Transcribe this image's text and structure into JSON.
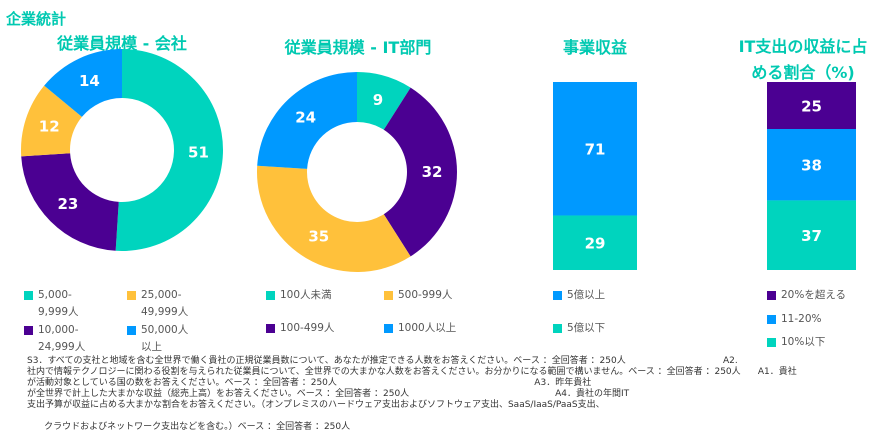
{
  "page_title": "企業統計",
  "colors": {
    "teal": "#00d4be",
    "yellow": "#ffc13b",
    "purple": "#4b0092",
    "blue": "#0099ff"
  },
  "chart_data": [
    {
      "type": "pie",
      "title": "従業員規模 - 会社",
      "categories": [
        "5,000-9,999人",
        "10,000-24,999人",
        "25,000-49,999人",
        "50,000人以上"
      ],
      "values": [
        51,
        23,
        12,
        14
      ],
      "colors": [
        "#00d4be",
        "#4b0092",
        "#ffc13b",
        "#0099ff"
      ]
    },
    {
      "type": "pie",
      "title": "従業員規模 - IT部門",
      "categories": [
        "100人未満",
        "100-499人",
        "500-999人",
        "1000人以上"
      ],
      "values": [
        9,
        32,
        35,
        24
      ],
      "colors": [
        "#00d4be",
        "#4b0092",
        "#ffc13b",
        "#0099ff"
      ]
    },
    {
      "type": "bar",
      "title": "事業収益",
      "categories": [
        "5億以上",
        "5億以下"
      ],
      "values": [
        71,
        29
      ],
      "colors": [
        "#0099ff",
        "#00d4be"
      ]
    },
    {
      "type": "bar",
      "title": "IT支出の収益に占める割合（%)",
      "categories": [
        "20%を超える",
        "11-20%",
        "10%以下"
      ],
      "values": [
        25,
        38,
        37
      ],
      "colors": [
        "#4b0092",
        "#0099ff",
        "#00d4be"
      ]
    }
  ],
  "legends": {
    "c1": [
      "5,000-\n9,999人",
      "25,000-\n49,999人",
      "10,000-\n24,999人",
      "50,000人\n以上"
    ],
    "c2": [
      "100人未満",
      "500-999人",
      "100-499人",
      "1000人以上"
    ],
    "c3": [
      "5億以上",
      "5億以下"
    ],
    "c4": [
      "20%を超える",
      "11-20%",
      "10%以下"
    ]
  },
  "footnote": "S3．すべての支社と地域を含む全世界で働く貴社の正規従業員数について、あなたが推定できる人数をお答えください。ベース ：全回答者 ：250人                                  A2.\n社内で情報テクノロジーに関わる役割を与えられた従業員について、全世界での大まかな人数をお答えください。お分かりになる範囲で構いません。ベース ：全回答者 ：250人      A1．貴社\nが活動対象としている国の数をお答えください。ベース ：全回答者 ：250人                                                                     A3．昨年貴社\nが全世界で計上した大まかな収益（総売上高）をお答えください。ベース ：全回答者 ：250人                                                   A4．貴社の年間IT\n支出予算が収益に占める大まかな割合をお答えください。（オンプレミスのハードウェア支出およびソフトウェア支出、SaaS/IaaS/PaaS支出、\n\n      クラウドおよびネットワーク支出などを含む。）ベース ：全回答者 ：250人"
}
